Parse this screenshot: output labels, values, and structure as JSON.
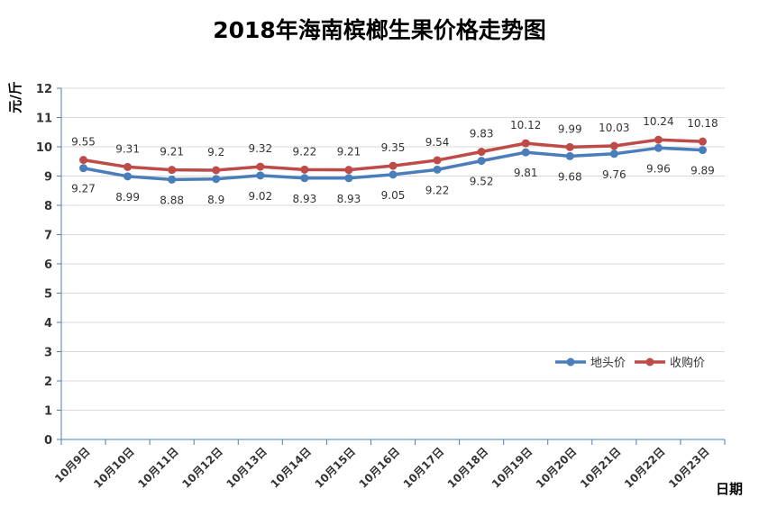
{
  "chart_data": {
    "type": "line",
    "title": "2018年海南槟榔生果价格走势图",
    "xlabel": "日期",
    "ylabel": "元/斤",
    "ylim": [
      0,
      12
    ],
    "yticks": [
      "0",
      "1",
      "2",
      "3",
      "4",
      "5",
      "6",
      "7",
      "8",
      "9",
      "10",
      "11",
      "12"
    ],
    "grid": true,
    "legend_position": "right",
    "categories": [
      "10月9日",
      "10月10日",
      "10月11日",
      "10月12日",
      "10月13日",
      "10月14日",
      "10月15日",
      "10月16日",
      "10月17日",
      "10月18日",
      "10月19日",
      "10月20日",
      "10月21日",
      "10月22日",
      "10月23日"
    ],
    "series": [
      {
        "name": "地头价",
        "color": "#4a7ebb",
        "label_position": "below",
        "values": [
          9.27,
          8.99,
          8.88,
          8.9,
          9.02,
          8.93,
          8.93,
          9.05,
          9.22,
          9.52,
          9.81,
          9.68,
          9.76,
          9.96,
          9.89
        ],
        "labels": [
          "9.27",
          "8.99",
          "8.88",
          "8.9",
          "9.02",
          "8.93",
          "8.93",
          "9.05",
          "9.22",
          "9.52",
          "9.81",
          "9.68",
          "9.76",
          "9.96",
          "9.89"
        ]
      },
      {
        "name": "收购价",
        "color": "#be4b48",
        "label_position": "above",
        "values": [
          9.55,
          9.31,
          9.21,
          9.2,
          9.32,
          9.22,
          9.21,
          9.35,
          9.54,
          9.83,
          10.12,
          9.99,
          10.03,
          10.24,
          10.18
        ],
        "labels": [
          "9.55",
          "9.31",
          "9.21",
          "9.2",
          "9.32",
          "9.22",
          "9.21",
          "9.35",
          "9.54",
          "9.83",
          "10.12",
          "9.99",
          "10.03",
          "10.24",
          "10.18"
        ]
      }
    ]
  }
}
